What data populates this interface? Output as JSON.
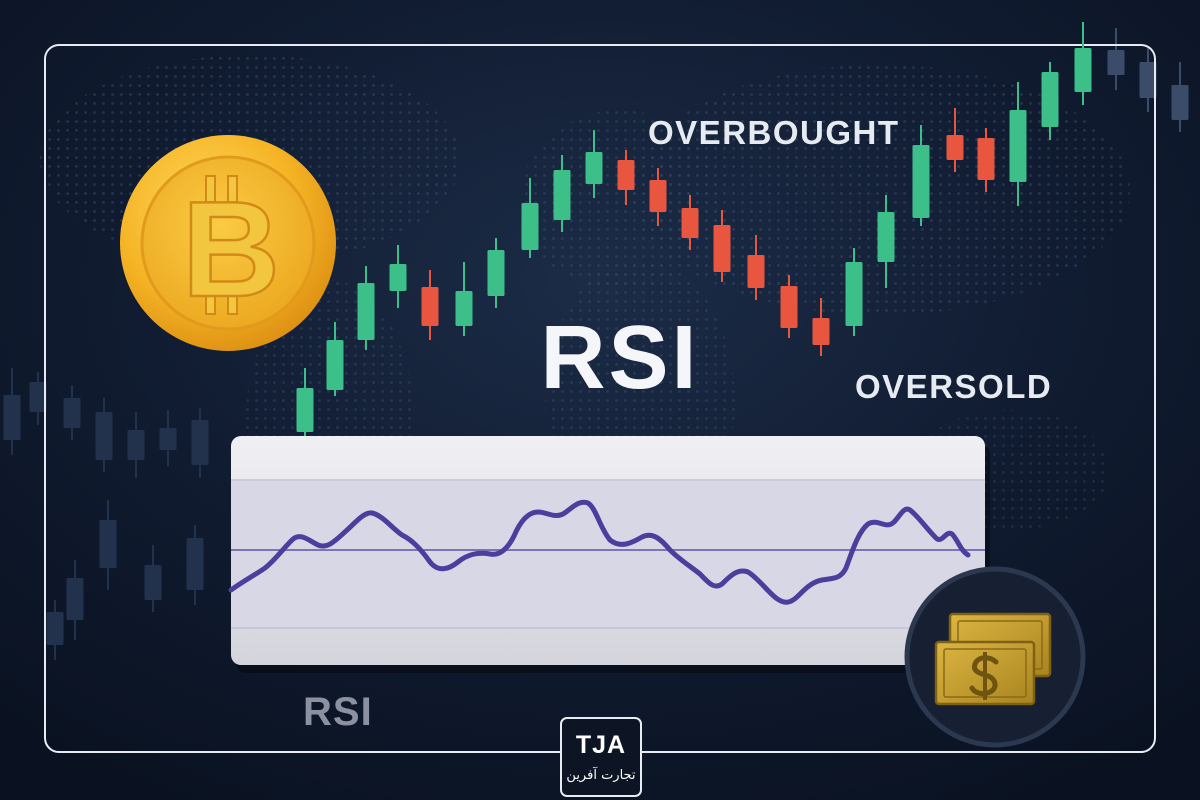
{
  "title": "RSI",
  "labels": {
    "overbought": "OVERBOUGHT",
    "oversold": "OVERSOLD"
  },
  "rsi_panel": {
    "label": "RSI"
  },
  "logo": {
    "mark": "TJA",
    "name": "تجارت آفرین"
  },
  "icons": {
    "coin": "bitcoin-coin-icon",
    "coin_glyph": "B",
    "money": "money-bills-icon"
  },
  "colors": {
    "background": "#0f1b30",
    "bullish": "#3dbf8a",
    "bearish": "#e8563f",
    "faded_candle": "#22324d",
    "rsi_line": "#4b3f9e",
    "coin_gold": "#f5b425",
    "panel": "#e2e2e8"
  }
}
